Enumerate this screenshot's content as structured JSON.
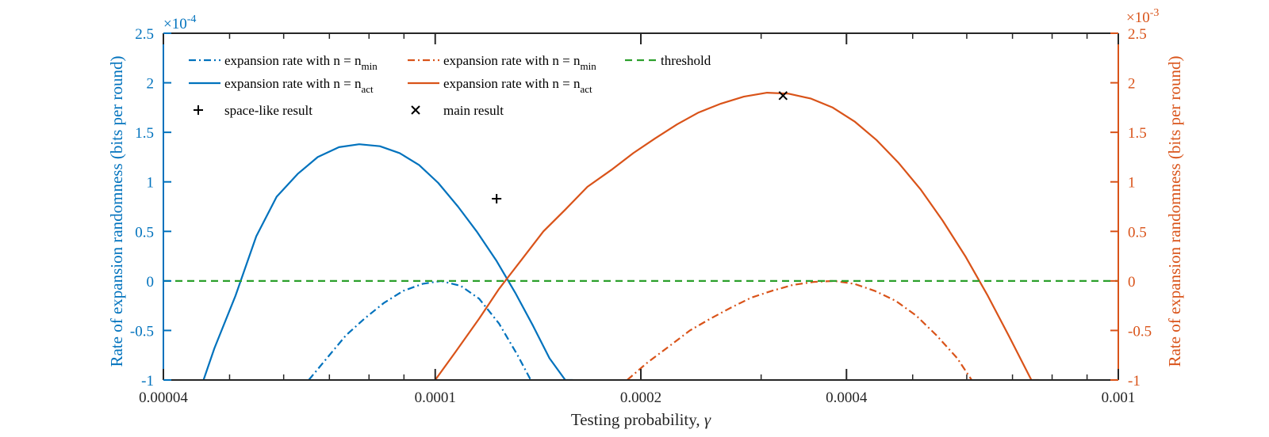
{
  "chart_data": {
    "type": "line",
    "title": "",
    "xlabel": "Testing probability, ",
    "xlabel_symbol": "γ",
    "x_scale": "log",
    "xlim": [
      4e-05,
      0.001
    ],
    "x_ticks": [
      4e-05,
      0.0001,
      0.0002,
      0.0004,
      0.001
    ],
    "x_tick_labels": [
      "0.00004",
      "0.0001",
      "0.0002",
      "0.0004",
      "0.001"
    ],
    "left_axis": {
      "label": "Rate of expansion randomness (bits per round)",
      "color": "#0072BD",
      "ylim": [
        -1,
        2.5
      ],
      "multiplier_base": "×10",
      "multiplier_exp": "-4",
      "ticks": [
        -1,
        -0.5,
        0,
        0.5,
        1,
        1.5,
        2,
        2.5
      ],
      "tick_labels": [
        "-1",
        "-0.5",
        "0",
        "0.5",
        "1",
        "1.5",
        "2",
        "2.5"
      ]
    },
    "right_axis": {
      "label": "Rate of expansion randomness (bits per round)",
      "color": "#D95319",
      "ylim": [
        -1,
        2.5
      ],
      "multiplier_base": "×10",
      "multiplier_exp": "-3",
      "ticks": [
        -1,
        -0.5,
        0,
        0.5,
        1,
        1.5,
        2,
        2.5
      ],
      "tick_labels": [
        "-1",
        "-0.5",
        "0",
        "0.5",
        "1",
        "1.5",
        "2",
        "2.5"
      ]
    },
    "series": [
      {
        "name": "expansion rate with n = n_min (left)",
        "axis": "left",
        "color": "#0072BD",
        "dash": "dashdot",
        "x": [
          6.53e-05,
          6.94e-05,
          7.4e-05,
          7.88e-05,
          8.42e-05,
          8.98e-05,
          9.58e-05,
          0.000102,
          0.000109,
          0.000116,
          0.000124,
          0.000132,
          0.000138
        ],
        "y": [
          -1.0,
          -0.78,
          -0.55,
          -0.38,
          -0.22,
          -0.1,
          -0.03,
          0.0,
          -0.05,
          -0.18,
          -0.43,
          -0.75,
          -1.0
        ]
      },
      {
        "name": "expansion rate with n = n_act (left)",
        "axis": "left",
        "color": "#0072BD",
        "dash": "solid",
        "x": [
          4.58e-05,
          4.75e-05,
          5.1e-05,
          5.47e-05,
          5.86e-05,
          6.29e-05,
          6.73e-05,
          7.23e-05,
          7.74e-05,
          8.3e-05,
          8.87e-05,
          9.47e-05,
          0.000101,
          0.000108,
          0.000115,
          0.000123,
          0.000131,
          0.000139,
          0.000147,
          0.000155,
          0.000159
        ],
        "y": [
          -1.0,
          -0.68,
          -0.15,
          0.45,
          0.85,
          1.08,
          1.25,
          1.35,
          1.38,
          1.36,
          1.29,
          1.17,
          0.99,
          0.75,
          0.5,
          0.2,
          -0.12,
          -0.45,
          -0.78,
          -1.0,
          -1.0
        ]
      },
      {
        "name": "expansion rate with n = n_min (right)",
        "axis": "right",
        "color": "#D95319",
        "dash": "dashdot",
        "x": [
          0.000191,
          0.000204,
          0.000221,
          0.000236,
          0.000253,
          0.000271,
          0.00029,
          0.000311,
          0.000334,
          0.000358,
          0.000384,
          0.000411,
          0.00044,
          0.000472,
          0.000506,
          0.000542,
          0.000581,
          0.00061
        ],
        "y": [
          -1.0,
          -0.83,
          -0.65,
          -0.5,
          -0.38,
          -0.27,
          -0.17,
          -0.1,
          -0.04,
          -0.01,
          0.0,
          -0.03,
          -0.1,
          -0.2,
          -0.35,
          -0.55,
          -0.78,
          -1.0
        ]
      },
      {
        "name": "expansion rate with n = n_act (right)",
        "axis": "right",
        "color": "#D95319",
        "dash": "solid",
        "x": [
          0.0001,
          0.000107,
          0.000116,
          0.000124,
          0.000134,
          0.000144,
          0.000155,
          0.000167,
          0.000181,
          0.000195,
          0.00021,
          0.000226,
          0.000243,
          0.000262,
          0.000283,
          0.000306,
          0.000329,
          0.000355,
          0.000382,
          0.000411,
          0.000443,
          0.000477,
          0.000514,
          0.000553,
          0.000597,
          0.000643,
          0.000692,
          0.000746,
          0.000765
        ],
        "y": [
          -1.0,
          -0.72,
          -0.38,
          -0.08,
          0.22,
          0.5,
          0.72,
          0.95,
          1.12,
          1.29,
          1.44,
          1.58,
          1.7,
          1.79,
          1.86,
          1.9,
          1.89,
          1.84,
          1.75,
          1.61,
          1.42,
          1.19,
          0.92,
          0.61,
          0.25,
          -0.14,
          -0.56,
          -1.0,
          -1.0
        ]
      },
      {
        "name": "threshold",
        "axis": "left",
        "color": "#2CA02C",
        "dash": "dashed",
        "x": [
          4e-05,
          0.001
        ],
        "y": [
          0,
          0
        ]
      }
    ],
    "markers": [
      {
        "name": "space-like result",
        "symbol": "+",
        "axis": "left",
        "x": 0.000123,
        "y": 0.83
      },
      {
        "name": "main result",
        "symbol": "x",
        "axis": "right",
        "x": 0.000323,
        "y": 1.87
      }
    ],
    "legend": {
      "placement": "top-left",
      "entries": [
        {
          "text": "expansion rate with n = n",
          "sub": "min",
          "color": "#0072BD",
          "style": "dashdot"
        },
        {
          "text": "expansion rate with n = n",
          "sub": "min",
          "color": "#D95319",
          "style": "dashdot"
        },
        {
          "text": "threshold",
          "sub": "",
          "color": "#2CA02C",
          "style": "dashed"
        },
        {
          "text": "expansion rate with n = n",
          "sub": "act",
          "color": "#0072BD",
          "style": "solid"
        },
        {
          "text": "expansion rate with n = n",
          "sub": "act",
          "color": "#D95319",
          "style": "solid"
        },
        {
          "text": "space-like result",
          "sub": "",
          "color": "#000000",
          "style": "plus"
        },
        {
          "text": "main result",
          "sub": "",
          "color": "#000000",
          "style": "cross"
        }
      ]
    },
    "grid": false
  }
}
